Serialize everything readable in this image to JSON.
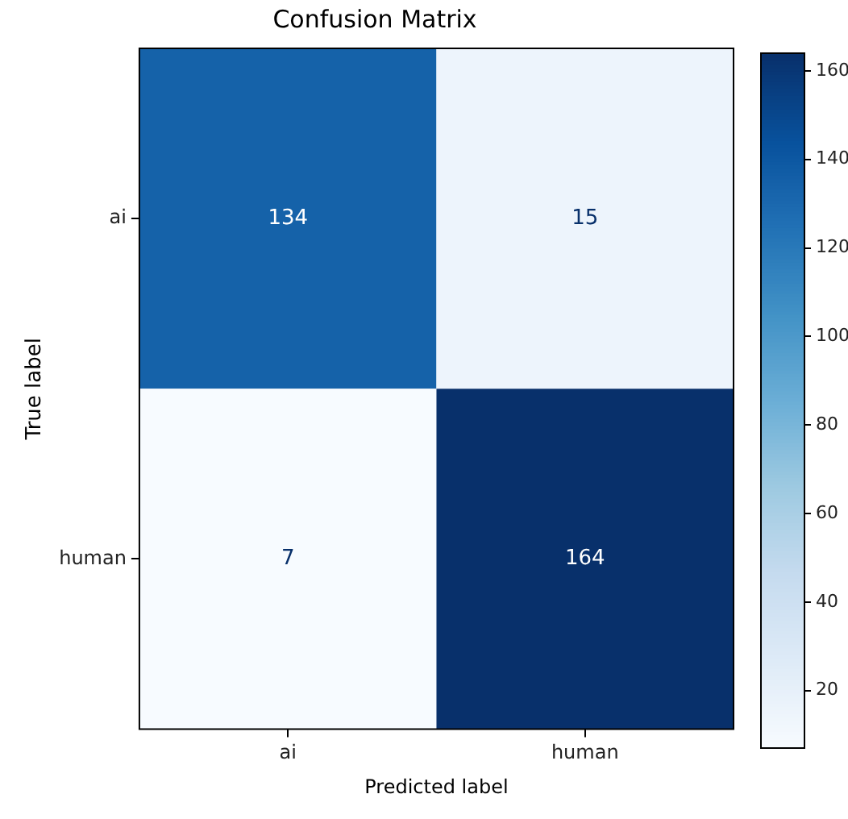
{
  "chart_data": {
    "type": "heatmap",
    "title": "Confusion Matrix",
    "xlabel": "Predicted label",
    "ylabel": "True label",
    "categories": [
      "ai",
      "human"
    ],
    "y_categories": [
      "ai",
      "human"
    ],
    "cells": [
      [
        134,
        15
      ],
      [
        7,
        164
      ]
    ],
    "clim": [
      7,
      164
    ],
    "cticks": [
      20,
      40,
      60,
      80,
      100,
      120,
      140,
      160
    ],
    "data_labels": true
  }
}
